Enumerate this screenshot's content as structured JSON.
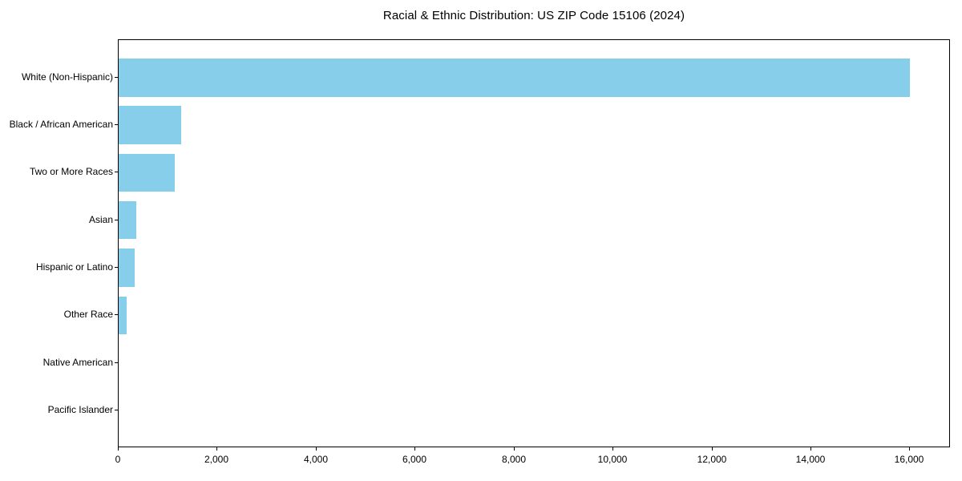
{
  "chart_data": {
    "type": "bar",
    "orientation": "horizontal",
    "title": "Racial & Ethnic Distribution: US ZIP Code 15106 (2024)",
    "categories": [
      "White (Non-Hispanic)",
      "Black / African American",
      "Two or More Races",
      "Asian",
      "Hispanic or Latino",
      "Other Race",
      "Native American",
      "Pacific Islander"
    ],
    "values": [
      16030,
      1260,
      1130,
      360,
      330,
      160,
      0,
      0
    ],
    "xlabel": "",
    "ylabel": "",
    "xlim": [
      0,
      16820
    ],
    "xticks": [
      0,
      2000,
      4000,
      6000,
      8000,
      10000,
      12000,
      14000,
      16000
    ],
    "xtick_labels": [
      "0",
      "2,000",
      "4,000",
      "6,000",
      "8,000",
      "10,000",
      "12,000",
      "14,000",
      "16,000"
    ],
    "bar_color": "#87CEEB",
    "grid": false,
    "legend": false,
    "frame": true
  }
}
